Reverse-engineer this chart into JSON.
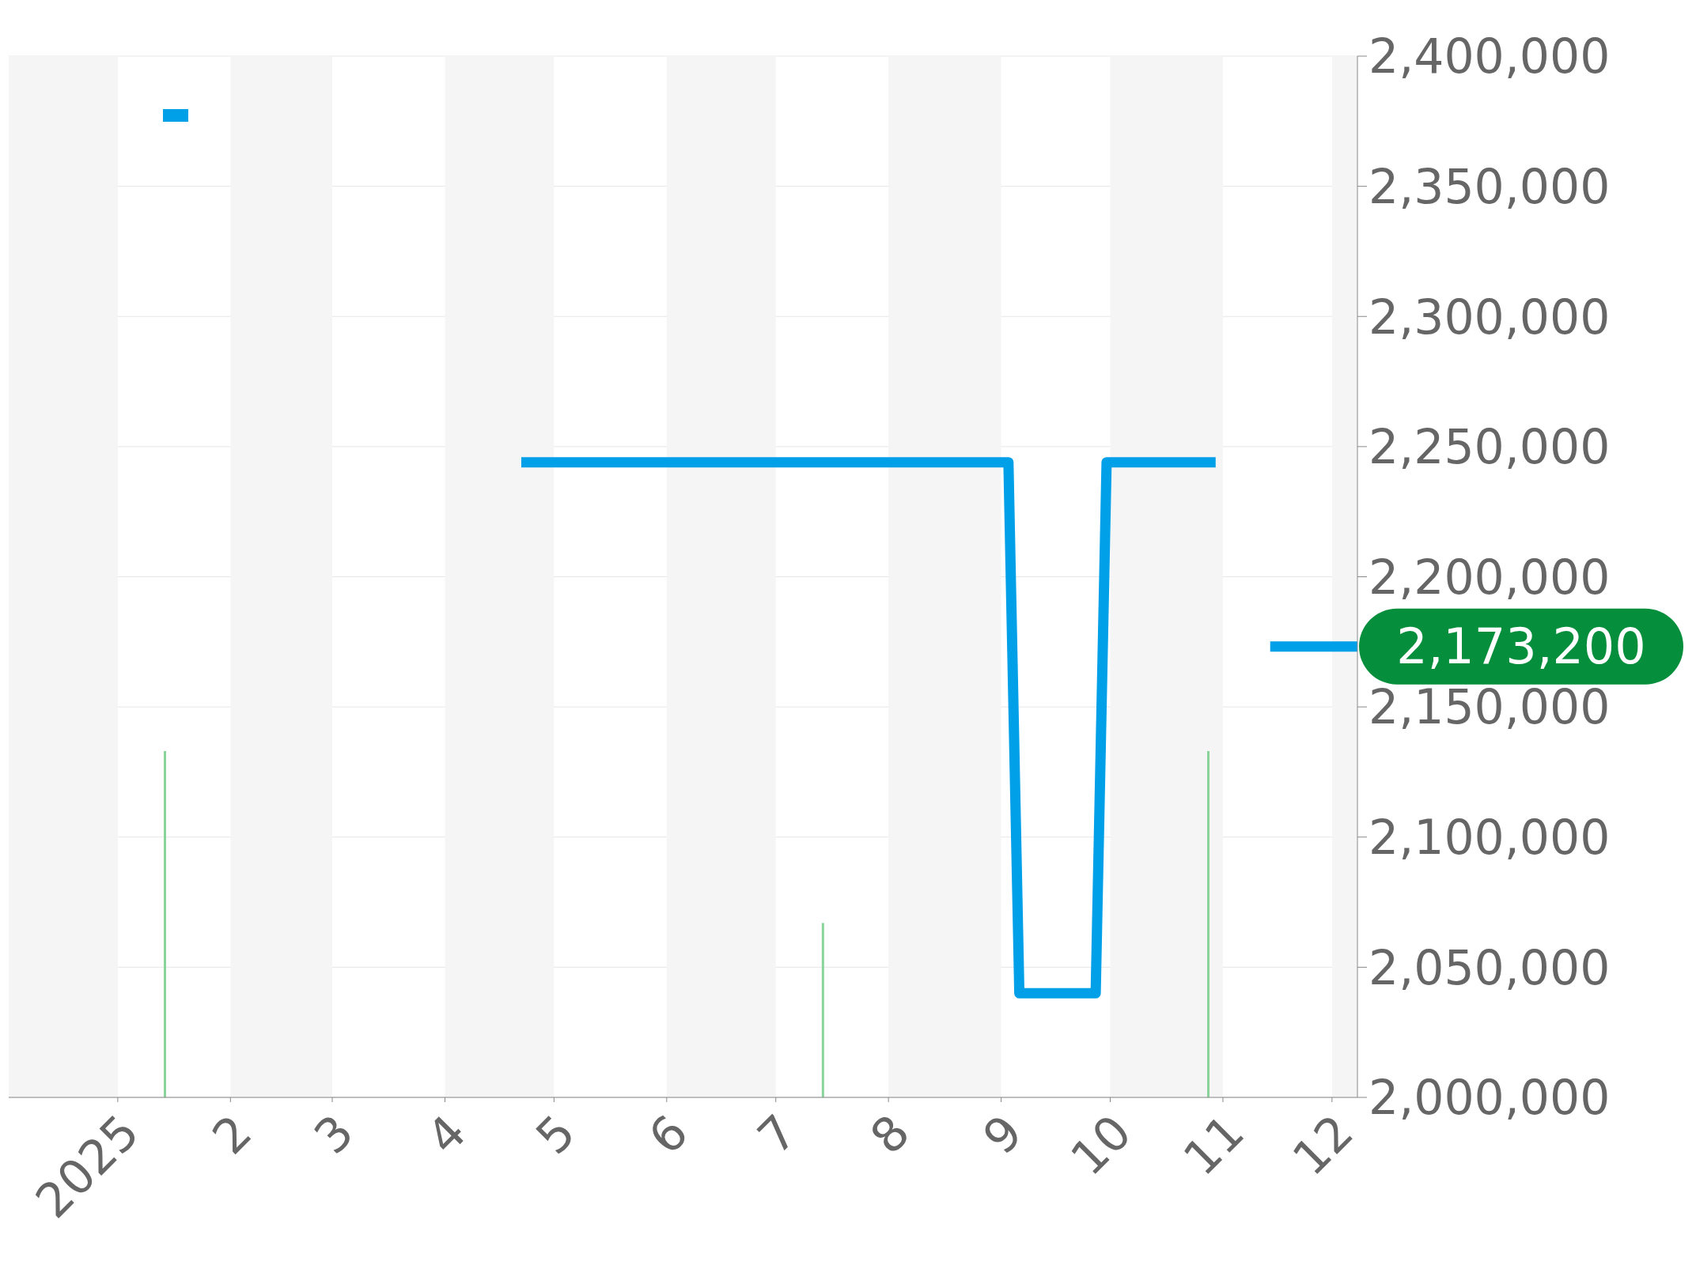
{
  "chart_data": {
    "type": "line",
    "xlim": [
      "2024-12-02",
      "2025-12-08"
    ],
    "ylim": [
      2000000,
      2400000
    ],
    "xticks": [
      {
        "value": "2025-01-01",
        "label": "2025"
      },
      {
        "value": "2025-02-01",
        "label": "2"
      },
      {
        "value": "2025-03-01",
        "label": "3"
      },
      {
        "value": "2025-04-01",
        "label": "4"
      },
      {
        "value": "2025-05-01",
        "label": "5"
      },
      {
        "value": "2025-06-01",
        "label": "6"
      },
      {
        "value": "2025-07-01",
        "label": "7"
      },
      {
        "value": "2025-08-01",
        "label": "8"
      },
      {
        "value": "2025-09-01",
        "label": "9"
      },
      {
        "value": "2025-10-01",
        "label": "10"
      },
      {
        "value": "2025-11-01",
        "label": "11"
      },
      {
        "value": "2025-12-01",
        "label": "12"
      }
    ],
    "yticks": [
      {
        "value": 2000000,
        "label": "2,000,000"
      },
      {
        "value": 2050000,
        "label": "2,050,000"
      },
      {
        "value": 2100000,
        "label": "2,100,000"
      },
      {
        "value": 2150000,
        "label": "2,150,000"
      },
      {
        "value": 2200000,
        "label": "2,200,000"
      },
      {
        "value": 2250000,
        "label": "2,250,000"
      },
      {
        "value": 2300000,
        "label": "2,300,000"
      },
      {
        "value": 2350000,
        "label": "2,350,000"
      },
      {
        "value": 2400000,
        "label": "2,400,000"
      }
    ],
    "grid": "y",
    "marker": "none",
    "line_style": "solid",
    "bands": [
      {
        "axis": "x",
        "from": "2024-12-02",
        "to": "2025-01-01",
        "color": "#f5f5f5"
      },
      {
        "axis": "x",
        "from": "2025-02-01",
        "to": "2025-03-01",
        "color": "#f5f5f5"
      },
      {
        "axis": "x",
        "from": "2025-04-01",
        "to": "2025-05-01",
        "color": "#f5f5f5"
      },
      {
        "axis": "x",
        "from": "2025-06-01",
        "to": "2025-07-01",
        "color": "#f5f5f5"
      },
      {
        "axis": "x",
        "from": "2025-08-01",
        "to": "2025-09-01",
        "color": "#f5f5f5"
      },
      {
        "axis": "x",
        "from": "2025-10-01",
        "to": "2025-11-01",
        "color": "#f5f5f5"
      },
      {
        "axis": "x",
        "from": "2025-12-01",
        "to": "2025-12-08",
        "color": "#f5f5f5"
      }
    ],
    "series": [
      {
        "color": "#00a0e9",
        "x": [
          "2025-04-22",
          "2025-09-03",
          "2025-09-06",
          "2025-09-27",
          "2025-09-30",
          "2025-10-30",
          "2025-11-01",
          "2025-11-14",
          "2025-12-08"
        ],
        "values": [
          2244000,
          2244000,
          2040000,
          2040000,
          2244000,
          2244000,
          null,
          2173200,
          2173200
        ],
        "value_labels": [
          null,
          null,
          null,
          null,
          null,
          null,
          null,
          null,
          "2,173,200"
        ]
      },
      {
        "type": "bar",
        "color": "#88d49a",
        "x": [
          "2025-01-14",
          "2025-07-14",
          "2025-10-28"
        ],
        "values": [
          2133000,
          2067000,
          2133000
        ]
      }
    ]
  }
}
